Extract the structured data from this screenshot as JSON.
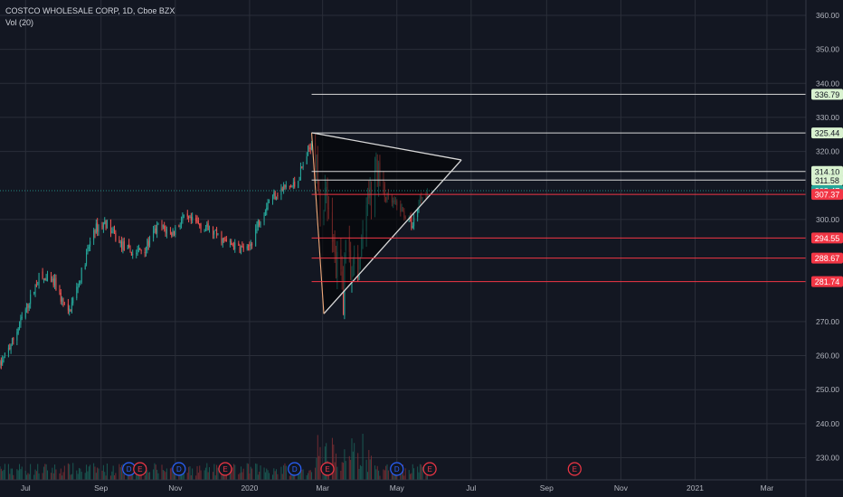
{
  "legend": {
    "symbol_line": "COSTCO WHOLESALE CORP, 1D, Cboe BZX",
    "indicator": "Vol (20)"
  },
  "chart_data": {
    "type": "candlestick",
    "y_axis": {
      "ticks": [
        "360.00",
        "350.00",
        "340.00",
        "330.00",
        "320.00",
        "300.00",
        "270.00",
        "260.00",
        "250.00",
        "240.00",
        "230.00"
      ],
      "tick_values": [
        360,
        350,
        340,
        330,
        320,
        300,
        270,
        260,
        250,
        240,
        230
      ],
      "range": [
        223.5,
        364.5
      ],
      "position": "right"
    },
    "x_axis": {
      "labels": [
        "Jul",
        "Sep",
        "Nov",
        "2020",
        "Mar",
        "May",
        "Jul",
        "Sep",
        "Nov",
        "2021",
        "Mar"
      ],
      "dates": [
        "2019-07-01",
        "2019-09-01",
        "2019-11-01",
        "2020-01-01",
        "2020-03-01",
        "2020-05-01",
        "2020-07-01",
        "2020-09-01",
        "2020-11-01",
        "2021-01-01",
        "2021-03-01"
      ],
      "range": [
        "2019-06-10",
        "2021-04-02"
      ]
    },
    "price_path": [
      [
        "2019-06-10",
        257
      ],
      [
        "2019-06-20",
        264
      ],
      [
        "2019-07-03",
        275
      ],
      [
        "2019-07-12",
        283
      ],
      [
        "2019-07-25",
        281
      ],
      [
        "2019-08-05",
        272
      ],
      [
        "2019-08-15",
        283
      ],
      [
        "2019-08-26",
        297
      ],
      [
        "2019-09-05",
        299
      ],
      [
        "2019-09-16",
        293
      ],
      [
        "2019-09-27",
        290
      ],
      [
        "2019-10-08",
        292
      ],
      [
        "2019-10-18",
        298
      ],
      [
        "2019-10-29",
        296
      ],
      [
        "2019-11-07",
        300
      ],
      [
        "2019-11-18",
        299
      ],
      [
        "2019-11-29",
        297
      ],
      [
        "2019-12-10",
        294
      ],
      [
        "2019-12-20",
        292
      ],
      [
        "2019-12-31",
        291
      ],
      [
        "2020-01-07",
        298
      ],
      [
        "2020-01-17",
        306
      ],
      [
        "2020-01-28",
        309
      ],
      [
        "2020-02-07",
        310
      ],
      [
        "2020-02-14",
        316
      ],
      [
        "2020-02-21",
        323
      ],
      [
        "2020-02-25",
        318
      ],
      [
        "2020-02-28",
        299
      ],
      [
        "2020-03-04",
        310
      ],
      [
        "2020-03-09",
        294
      ],
      [
        "2020-03-12",
        286
      ],
      [
        "2020-03-16",
        290
      ],
      [
        "2020-03-18",
        275
      ],
      [
        "2020-03-20",
        296
      ],
      [
        "2020-03-24",
        287
      ],
      [
        "2020-03-27",
        285
      ],
      [
        "2020-04-01",
        289
      ],
      [
        "2020-04-06",
        302
      ],
      [
        "2020-04-10",
        306
      ],
      [
        "2020-04-14",
        317
      ],
      [
        "2020-04-20",
        307
      ],
      [
        "2020-04-27",
        305
      ],
      [
        "2020-05-04",
        303
      ],
      [
        "2020-05-11",
        300
      ],
      [
        "2020-05-14",
        298
      ],
      [
        "2020-05-18",
        304
      ],
      [
        "2020-05-21",
        307
      ],
      [
        "2020-05-26",
        308.5
      ]
    ],
    "candle_range": [
      "2019-06-10",
      "2020-05-26"
    ],
    "volume_band": [
      2,
      26
    ],
    "volume_spike": [
      "2020-02-24",
      "2020-04-10",
      2.6
    ],
    "events": [
      {
        "date": "2019-09-24",
        "letter": "D"
      },
      {
        "date": "2019-10-03",
        "letter": "E"
      },
      {
        "date": "2019-11-04",
        "letter": "D"
      },
      {
        "date": "2019-12-12",
        "letter": "E"
      },
      {
        "date": "2020-02-07",
        "letter": "D"
      },
      {
        "date": "2020-03-05",
        "letter": "E"
      },
      {
        "date": "2020-05-01",
        "letter": "D"
      },
      {
        "date": "2020-05-28",
        "letter": "E"
      },
      {
        "date": "2020-09-24",
        "letter": "E"
      }
    ],
    "triangle": [
      [
        "2020-02-21",
        325.5
      ],
      [
        "2020-03-02",
        272.3
      ],
      [
        "2020-06-23",
        317.5
      ]
    ],
    "horizontal_levels": [
      {
        "price": 336.79,
        "label": "336.79",
        "kind": "support-green",
        "start": "2020-02-21"
      },
      {
        "price": 325.44,
        "label": "325.44",
        "kind": "support-green",
        "start": "2020-02-21"
      },
      {
        "price": 314.1,
        "label": "314.10",
        "kind": "support-green",
        "start": "2020-02-21"
      },
      {
        "price": 311.58,
        "label": "311.58",
        "kind": "support-green",
        "start": "2020-02-21"
      },
      {
        "price": 308.47,
        "label": "308.47",
        "kind": "last-price",
        "start": "2019-06-10"
      },
      {
        "price": 307.37,
        "label": "307.37",
        "kind": "resistance-red",
        "start": "2020-02-21"
      },
      {
        "price": 294.55,
        "label": "294.55",
        "kind": "resistance-red",
        "start": "2020-02-21"
      },
      {
        "price": 288.67,
        "label": "288.67",
        "kind": "resistance-red",
        "start": "2020-02-21"
      },
      {
        "price": 281.74,
        "label": "281.74",
        "kind": "resistance-red",
        "start": "2020-02-21"
      }
    ],
    "colors": {
      "background": "#131722",
      "grid": "#2a2e39",
      "axis_text": "#b2b5be",
      "up": "#26a69a",
      "down": "#ef5350",
      "vol_up": "#1b5e57",
      "vol_down": "#7a2d33",
      "level_green_bg": "#d9f2d0",
      "level_red_bg": "#f23645",
      "last_price_bg": "#26a69a",
      "line_white": "#d8d8d8",
      "line_red": "#f23645",
      "dividend_circle": "#2962ff",
      "earnings_circle": "#f23645"
    }
  }
}
